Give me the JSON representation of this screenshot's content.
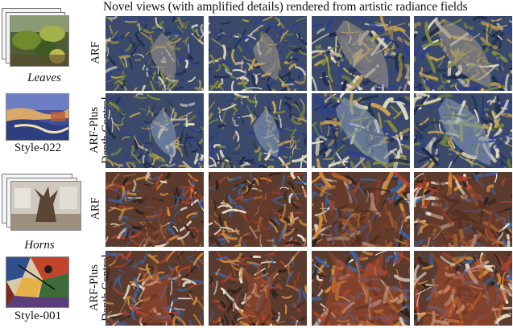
{
  "figure": {
    "caption": "Novel views (with amplified details) rendered from artistic radiance fields"
  },
  "scenes": [
    {
      "name": "Leaves",
      "style_name": "Style-022"
    },
    {
      "name": "Horns",
      "style_name": "Style-001"
    }
  ],
  "row_labels": {
    "arf": "ARF",
    "arfplus_1": "ARF-Plus",
    "arfplus_2": "Depth Control"
  },
  "palette": {
    "leaves_base": "#3b4a6a",
    "leaves_green": "#7f8a3c",
    "leaves_blue": "#2d3f8f",
    "leaves_yellow": "#c7a24b",
    "horns_base": "#5a3b2e",
    "horns_red": "#b0432c",
    "horns_blue": "#3d64a3",
    "horns_orange": "#d48a3a"
  }
}
